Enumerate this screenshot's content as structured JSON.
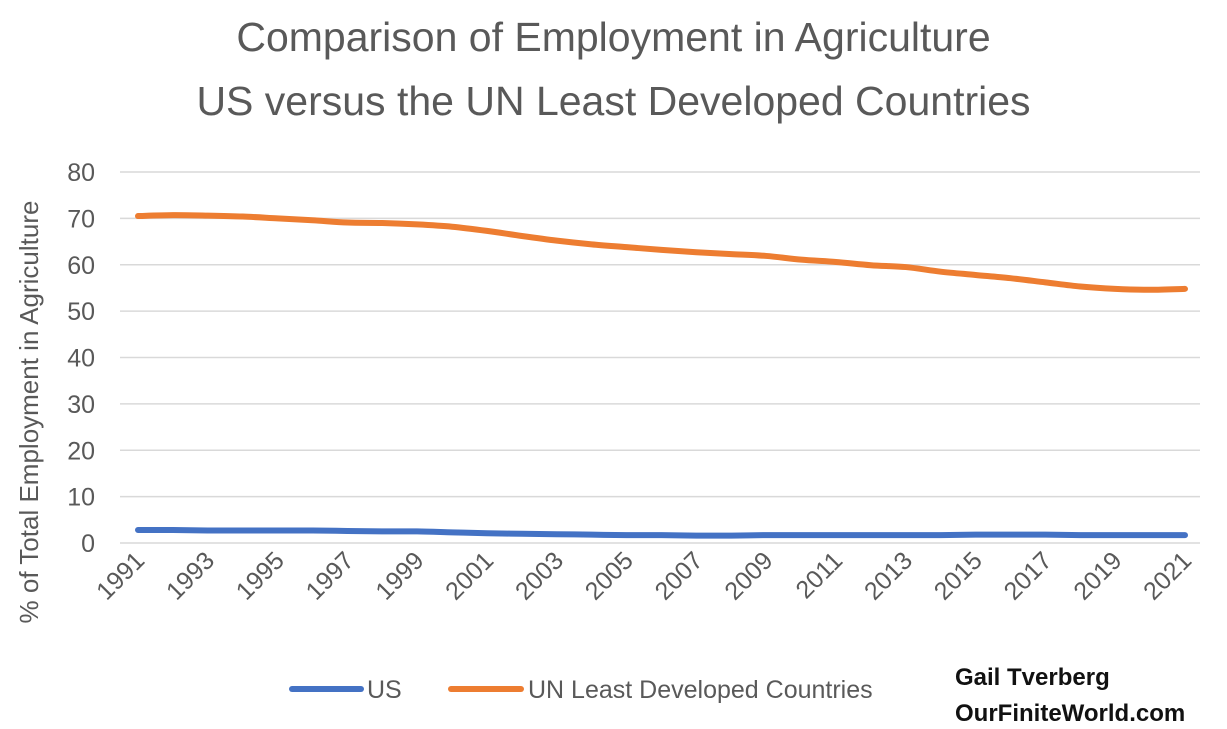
{
  "chart_data": {
    "type": "line",
    "title": "Comparison of Employment in Agriculture",
    "subtitle": "US versus the UN Least Developed Countries",
    "xlabel": "",
    "ylabel": "% of Total Employment in Agriculture",
    "ylim": [
      0,
      80
    ],
    "yticks": [
      0,
      10,
      20,
      30,
      40,
      50,
      60,
      70,
      80
    ],
    "x": [
      1991,
      1992,
      1993,
      1994,
      1995,
      1996,
      1997,
      1998,
      1999,
      2000,
      2001,
      2002,
      2003,
      2004,
      2005,
      2006,
      2007,
      2008,
      2009,
      2010,
      2011,
      2012,
      2013,
      2014,
      2015,
      2016,
      2017,
      2018,
      2019,
      2020,
      2021
    ],
    "xtick_labels": [
      "1991",
      "1993",
      "1995",
      "1997",
      "1999",
      "2001",
      "2003",
      "2005",
      "2007",
      "2009",
      "2011",
      "2013",
      "2015",
      "2017",
      "2019",
      "2021"
    ],
    "grid": "horizontal",
    "legend_position": "bottom",
    "series": [
      {
        "name": "US",
        "color": "#4472C4",
        "values": [
          2.8,
          2.8,
          2.7,
          2.7,
          2.7,
          2.7,
          2.6,
          2.5,
          2.5,
          2.3,
          2.1,
          2.0,
          1.9,
          1.8,
          1.7,
          1.7,
          1.6,
          1.6,
          1.7,
          1.7,
          1.7,
          1.7,
          1.7,
          1.7,
          1.8,
          1.8,
          1.8,
          1.7,
          1.7,
          1.7,
          1.7
        ]
      },
      {
        "name": "UN Least Developed Countries",
        "color": "#ED7D31",
        "values": [
          70.5,
          70.7,
          70.6,
          70.4,
          70.0,
          69.6,
          69.1,
          69.0,
          68.7,
          68.2,
          67.3,
          66.2,
          65.2,
          64.4,
          63.8,
          63.2,
          62.7,
          62.3,
          61.9,
          61.1,
          60.6,
          59.9,
          59.5,
          58.5,
          57.8,
          57.1,
          56.2,
          55.3,
          54.8,
          54.6,
          54.8
        ]
      }
    ]
  },
  "credit": {
    "line1": "Gail Tverberg",
    "line2": "OurFiniteWorld.com"
  }
}
